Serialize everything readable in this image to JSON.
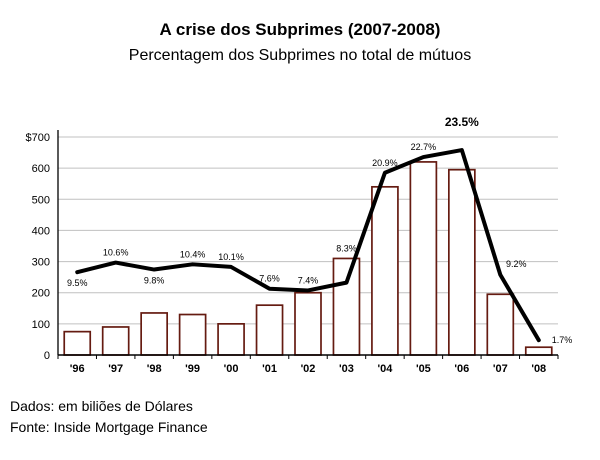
{
  "chart_data": {
    "type": "combo",
    "title": "A crise dos Subprimes (2007-2008)",
    "subtitle": "Percentagem dos Subprimes no total de mútuos",
    "categories": [
      "'96",
      "'97",
      "'98",
      "'99",
      "'00",
      "'01",
      "'02",
      "'03",
      "'04",
      "'05",
      "'06",
      "'07",
      "'08"
    ],
    "series": [
      {
        "type": "bar",
        "name": "Subprimes em biliões de Dólares",
        "values": [
          75,
          90,
          135,
          130,
          100,
          160,
          200,
          310,
          540,
          620,
          595,
          195,
          25
        ]
      },
      {
        "type": "line",
        "name": "Percentagem dos Subprimes no total de mútuos",
        "values": [
          9.5,
          10.6,
          9.8,
          10.4,
          10.1,
          7.6,
          7.4,
          8.3,
          20.9,
          22.7,
          23.5,
          9.2,
          1.7
        ],
        "labels": [
          "9.5%",
          "10.6%",
          "9.8%",
          "10.4%",
          "10.1%",
          "7.6%",
          "7.4%",
          "8.3%",
          "20.9%",
          "22.7%",
          "23.5%",
          "9.2%",
          "1.7%"
        ],
        "label_pos": [
          "below",
          "above",
          "below",
          "above",
          "above",
          "above",
          "above",
          "above",
          "above",
          "above",
          "peak",
          "above-right",
          "right"
        ],
        "emphasis_label": "23.5%"
      }
    ],
    "y_axis": {
      "tick_labels": [
        "$700",
        "600",
        "500",
        "400",
        "300",
        "200",
        "100",
        "0"
      ],
      "min": 0,
      "max": 700,
      "grid": true
    },
    "pct_to_dollar_scale": 28,
    "footer_lines": [
      "Dados: em biliões de Dólares",
      "Fonte: Inside Mortgage Finance"
    ],
    "colors": {
      "bar_fill": "#ffffff",
      "bar_stroke": "#651b11",
      "line": "#000000",
      "grid": "#c0c0c0",
      "axis": "#000000",
      "text": "#000000"
    }
  }
}
